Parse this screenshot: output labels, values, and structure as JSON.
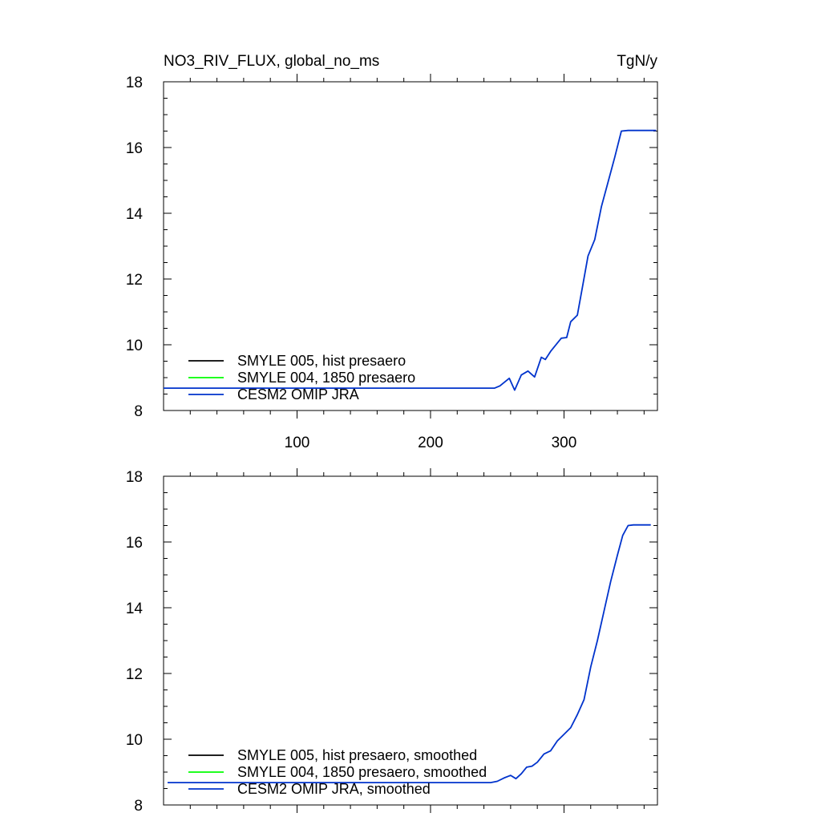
{
  "colors": {
    "axis": "#000000",
    "series": [
      "#000000",
      "#00ff00",
      "#0033cc"
    ]
  },
  "chart_data": [
    {
      "type": "line",
      "title_left": "NO3_RIV_FLUX, global_no_ms",
      "title_right": "TgN/y",
      "xlim": [
        0,
        370
      ],
      "ylim": [
        8,
        18
      ],
      "x_ticks": [
        100,
        200,
        300
      ],
      "x_tick_labels": [
        "100",
        "200",
        "300"
      ],
      "y_ticks": [
        8,
        10,
        12,
        14,
        16,
        18
      ],
      "y_tick_labels": [
        "8",
        "10",
        "12",
        "14",
        "16",
        "18"
      ],
      "grid": false,
      "legend_position": "bottom-left",
      "series": [
        {
          "name": "SMYLE 005, hist presaero",
          "color": "#000000",
          "x": [],
          "y": []
        },
        {
          "name": "SMYLE 004, 1850 presaero",
          "color": "#00ff00",
          "x": [],
          "y": []
        },
        {
          "name": "CESM2 OMIP JRA",
          "color": "#0033cc",
          "x": [
            0,
            248,
            252,
            259,
            263,
            268,
            273,
            278,
            283,
            286,
            290,
            295,
            298,
            302,
            305,
            310,
            314,
            318,
            323,
            328,
            333,
            338,
            343,
            348,
            352,
            360,
            369
          ],
          "y": [
            8.68,
            8.68,
            8.75,
            8.98,
            8.62,
            9.08,
            9.2,
            9.02,
            9.62,
            9.55,
            9.8,
            10.05,
            10.2,
            10.22,
            10.7,
            10.9,
            11.8,
            12.7,
            13.2,
            14.2,
            14.95,
            15.7,
            16.5,
            16.52,
            16.52,
            16.52,
            16.52
          ]
        }
      ]
    },
    {
      "type": "line",
      "xlim": [
        0,
        370
      ],
      "ylim": [
        8,
        18
      ],
      "x_ticks": [
        100,
        200,
        300
      ],
      "y_ticks": [
        8,
        10,
        12,
        14,
        16,
        18
      ],
      "y_tick_labels": [
        "8",
        "10",
        "12",
        "14",
        "16",
        "18"
      ],
      "grid": false,
      "legend_position": "bottom-left",
      "series": [
        {
          "name": "SMYLE 005, hist presaero, smoothed",
          "color": "#000000",
          "x": [],
          "y": []
        },
        {
          "name": "SMYLE 004, 1850 presaero, smoothed",
          "color": "#00ff00",
          "x": [],
          "y": []
        },
        {
          "name": "CESM2 OMIP JRA, smoothed",
          "color": "#0033cc",
          "x": [
            3,
            245,
            250,
            255,
            260,
            264,
            268,
            272,
            276,
            280,
            285,
            290,
            295,
            300,
            305,
            310,
            315,
            320,
            325,
            330,
            335,
            340,
            344,
            348,
            352,
            356,
            365
          ],
          "y": [
            8.68,
            8.68,
            8.72,
            8.82,
            8.9,
            8.8,
            8.95,
            9.15,
            9.18,
            9.3,
            9.55,
            9.65,
            9.95,
            10.15,
            10.35,
            10.75,
            11.2,
            12.2,
            13.0,
            13.9,
            14.8,
            15.6,
            16.2,
            16.5,
            16.52,
            16.52,
            16.52
          ]
        }
      ]
    }
  ]
}
